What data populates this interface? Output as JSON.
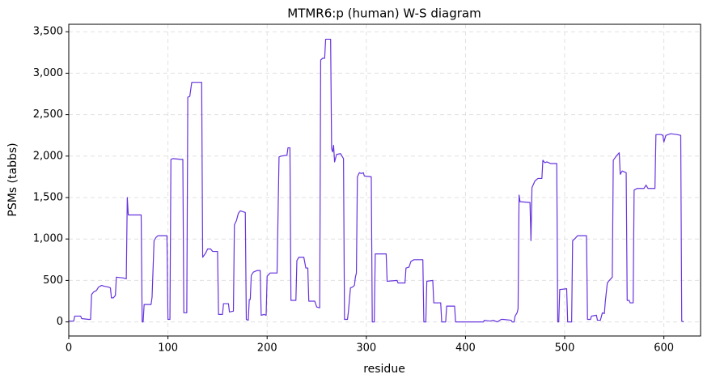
{
  "chart_data": {
    "type": "line",
    "title": "MTMR6:p (human) W-S diagram",
    "x_label": "residue",
    "y_label": "PSMs (tabbs)",
    "color": "#6633dd",
    "grid": true,
    "x": [
      0,
      5,
      6,
      12,
      13,
      20,
      22,
      23,
      25,
      28,
      30,
      33,
      36,
      40,
      42,
      43,
      45,
      47,
      48,
      55,
      58,
      59,
      60,
      62,
      73,
      74,
      75,
      76,
      83,
      84,
      86,
      88,
      90,
      99,
      100,
      102,
      103,
      105,
      113,
      115,
      116,
      119,
      120,
      122,
      124,
      134,
      135,
      138,
      140,
      143,
      145,
      150,
      151,
      155,
      156,
      161,
      162,
      166,
      167,
      169,
      171,
      173,
      178,
      179,
      181,
      182,
      183,
      184,
      186,
      190,
      193,
      194,
      197,
      199,
      200,
      203,
      210,
      212,
      214,
      220,
      221,
      223,
      224,
      229,
      230,
      232,
      237,
      239,
      241,
      242,
      248,
      250,
      253,
      254,
      256,
      258,
      259,
      264,
      265,
      266,
      267,
      268,
      270,
      274,
      277,
      278,
      281,
      282,
      284,
      286,
      288,
      289,
      290,
      291,
      293,
      295,
      297,
      298,
      305,
      306,
      308,
      309,
      320,
      321,
      331,
      332,
      339,
      340,
      343,
      345,
      348,
      357,
      358,
      360,
      361,
      367,
      368,
      375,
      376,
      380,
      381,
      389,
      390,
      418,
      419,
      425,
      428,
      432,
      436,
      438,
      446,
      447,
      449,
      450,
      452,
      453,
      454,
      455,
      465,
      466,
      467,
      470,
      473,
      477,
      478,
      480,
      482,
      486,
      492,
      493,
      494,
      495,
      502,
      503,
      507,
      508,
      510,
      513,
      522,
      523,
      526,
      527,
      532,
      533,
      536,
      538,
      540,
      541,
      543,
      545,
      548,
      549,
      552,
      555,
      556,
      558,
      562,
      563,
      565,
      566,
      569,
      570,
      573,
      580,
      582,
      584,
      591,
      592,
      597,
      599,
      600,
      602,
      607,
      613,
      617,
      618,
      620
    ],
    "values": [
      10,
      10,
      70,
      70,
      40,
      30,
      30,
      330,
      360,
      380,
      420,
      440,
      430,
      420,
      410,
      290,
      290,
      320,
      540,
      530,
      520,
      1500,
      1290,
      1290,
      1290,
      0,
      0,
      210,
      210,
      300,
      980,
      1020,
      1040,
      1040,
      30,
      30,
      1960,
      1970,
      1960,
      1960,
      110,
      110,
      2710,
      2720,
      2890,
      2890,
      780,
      830,
      880,
      880,
      850,
      850,
      90,
      90,
      220,
      220,
      120,
      130,
      1170,
      1220,
      1310,
      1340,
      1320,
      30,
      20,
      270,
      270,
      560,
      600,
      620,
      620,
      80,
      90,
      80,
      550,
      590,
      590,
      1990,
      2000,
      2010,
      2100,
      2100,
      260,
      260,
      740,
      780,
      780,
      650,
      650,
      250,
      250,
      180,
      170,
      3160,
      3180,
      3180,
      3410,
      3410,
      2090,
      2050,
      2130,
      1930,
      2020,
      2030,
      1970,
      30,
      30,
      130,
      410,
      420,
      440,
      540,
      590,
      1750,
      1800,
      1790,
      1800,
      1760,
      1750,
      0,
      0,
      820,
      820,
      490,
      500,
      470,
      470,
      650,
      660,
      730,
      750,
      750,
      0,
      0,
      490,
      500,
      230,
      230,
      0,
      0,
      190,
      190,
      0,
      0,
      20,
      10,
      20,
      0,
      30,
      30,
      20,
      0,
      0,
      70,
      110,
      160,
      1530,
      1450,
      1440,
      980,
      1620,
      1700,
      1730,
      1730,
      1950,
      1920,
      1930,
      1910,
      1910,
      0,
      0,
      390,
      400,
      0,
      0,
      980,
      1000,
      1040,
      1040,
      30,
      30,
      70,
      80,
      20,
      20,
      110,
      100,
      250,
      470,
      500,
      540,
      1950,
      2000,
      2040,
      1780,
      1820,
      1800,
      260,
      260,
      230,
      230,
      1590,
      1610,
      1610,
      1650,
      1610,
      1610,
      2260,
      2260,
      2250,
      2170,
      2250,
      2270,
      2260,
      2250,
      10,
      0
    ],
    "xlim": [
      0,
      637
    ],
    "ylim": [
      -170,
      3590
    ],
    "xticks": [
      0,
      100,
      200,
      300,
      400,
      500,
      600
    ],
    "yticks": [
      0,
      500,
      {
        "value": 1000,
        "label": "1,000"
      },
      {
        "value": 1500,
        "label": "1,500"
      },
      {
        "value": 2000,
        "label": "2,000"
      },
      {
        "value": 2500,
        "label": "2,500"
      },
      {
        "value": 3000,
        "label": "3,000"
      },
      {
        "value": 3500,
        "label": "3,500"
      }
    ]
  }
}
